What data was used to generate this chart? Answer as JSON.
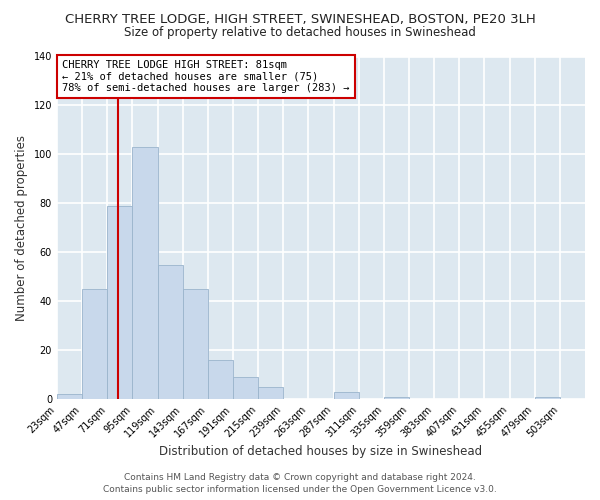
{
  "title": "CHERRY TREE LODGE, HIGH STREET, SWINESHEAD, BOSTON, PE20 3LH",
  "subtitle": "Size of property relative to detached houses in Swineshead",
  "xlabel": "Distribution of detached houses by size in Swineshead",
  "ylabel": "Number of detached properties",
  "bar_color": "#c8d8eb",
  "bar_edge_color": "#9ab4cc",
  "bins": [
    23,
    47,
    71,
    95,
    119,
    143,
    167,
    191,
    215,
    239,
    263,
    287,
    311,
    335,
    359,
    383,
    407,
    431,
    455,
    479,
    503
  ],
  "counts": [
    2,
    45,
    79,
    103,
    55,
    45,
    16,
    9,
    5,
    0,
    0,
    3,
    0,
    1,
    0,
    0,
    0,
    0,
    0,
    1
  ],
  "tick_labels": [
    "23sqm",
    "47sqm",
    "71sqm",
    "95sqm",
    "119sqm",
    "143sqm",
    "167sqm",
    "191sqm",
    "215sqm",
    "239sqm",
    "263sqm",
    "287sqm",
    "311sqm",
    "335sqm",
    "359sqm",
    "383sqm",
    "407sqm",
    "431sqm",
    "455sqm",
    "479sqm",
    "503sqm"
  ],
  "ylim": [
    0,
    140
  ],
  "yticks": [
    0,
    20,
    40,
    60,
    80,
    100,
    120,
    140
  ],
  "vline_x": 81,
  "vline_color": "#cc0000",
  "annotation_line1": "CHERRY TREE LODGE HIGH STREET: 81sqm",
  "annotation_line2": "← 21% of detached houses are smaller (75)",
  "annotation_line3": "78% of semi-detached houses are larger (283) →",
  "annotation_box_color": "#ffffff",
  "annotation_box_edge_color": "#cc0000",
  "footer_line1": "Contains HM Land Registry data © Crown copyright and database right 2024.",
  "footer_line2": "Contains public sector information licensed under the Open Government Licence v3.0.",
  "fig_bg_color": "#ffffff",
  "plot_bg_color": "#dde8f0",
  "grid_color": "#ffffff",
  "title_fontsize": 9.5,
  "subtitle_fontsize": 8.5,
  "xlabel_fontsize": 8.5,
  "ylabel_fontsize": 8.5,
  "tick_fontsize": 7,
  "annotation_fontsize": 7.5,
  "footer_fontsize": 6.5
}
